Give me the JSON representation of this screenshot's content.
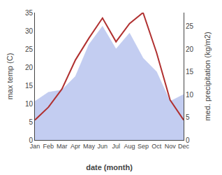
{
  "chart_data": {
    "type": "line",
    "categories": [
      "Jan",
      "Feb",
      "Mar",
      "Apr",
      "May",
      "Jun",
      "Jul",
      "Aug",
      "Sep",
      "Oct",
      "Nov",
      "Dec"
    ],
    "xlabel": "date (month)",
    "ylabel": "max temp (C)",
    "y2label": "med. precipitation (kg/m2)",
    "series": [
      {
        "type": "area",
        "axis": "y2",
        "color": "#b8c4ee",
        "values": [
          8.5,
          10.5,
          11.0,
          14.0,
          21.0,
          25.0,
          20.0,
          23.5,
          18.0,
          15.0,
          8.5,
          10.0
        ]
      },
      {
        "type": "line",
        "color": "#b03030",
        "values": [
          5.5,
          9.0,
          14.0,
          22.0,
          28.0,
          33.5,
          27.0,
          32.0,
          35.0,
          24.0,
          11.0,
          5.5
        ]
      }
    ],
    "ylim": [
      0,
      35
    ],
    "yticks": [
      0,
      5,
      10,
      15,
      20,
      25,
      30,
      35
    ],
    "y2lim": [
      0,
      28
    ],
    "y2ticks": [
      0,
      5,
      10,
      15,
      20,
      25
    ],
    "grid": false
  }
}
